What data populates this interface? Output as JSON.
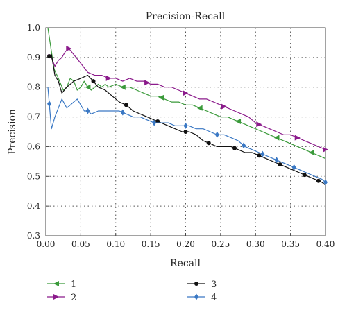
{
  "chart_data": {
    "type": "line",
    "title": "Precision-Recall",
    "xlabel": "Recall",
    "ylabel": "Precision",
    "xlim": [
      0.0,
      0.4
    ],
    "ylim": [
      0.3,
      1.0
    ],
    "xticks": [
      0.0,
      0.05,
      0.1,
      0.15,
      0.2,
      0.25,
      0.3,
      0.35,
      0.4
    ],
    "yticks": [
      0.3,
      0.4,
      0.5,
      0.6,
      0.7,
      0.8,
      0.9,
      1.0
    ],
    "xtick_labels": [
      "0.00",
      "0.05",
      "0.10",
      "0.15",
      "0.20",
      "0.25",
      "0.30",
      "0.35",
      "0.40"
    ],
    "ytick_labels": [
      "0.3",
      "0.4",
      "0.5",
      "0.6",
      "0.7",
      "0.8",
      "0.9",
      "1.0"
    ],
    "grid": true,
    "legend_position": "bottom",
    "series": [
      {
        "name": "1",
        "color": "#3a9a3a",
        "marker": "triangle-left",
        "x": [
          0.003,
          0.008,
          0.012,
          0.018,
          0.025,
          0.03,
          0.035,
          0.04,
          0.045,
          0.05,
          0.055,
          0.06,
          0.065,
          0.07,
          0.075,
          0.08,
          0.085,
          0.09,
          0.1,
          0.11,
          0.12,
          0.13,
          0.14,
          0.15,
          0.16,
          0.17,
          0.18,
          0.19,
          0.2,
          0.21,
          0.22,
          0.23,
          0.24,
          0.25,
          0.26,
          0.27,
          0.28,
          0.29,
          0.3,
          0.31,
          0.32,
          0.33,
          0.34,
          0.35,
          0.36,
          0.37,
          0.38,
          0.39,
          0.4
        ],
        "y": [
          1.0,
          0.92,
          0.86,
          0.83,
          0.79,
          0.8,
          0.83,
          0.82,
          0.79,
          0.8,
          0.82,
          0.8,
          0.79,
          0.8,
          0.81,
          0.8,
          0.81,
          0.8,
          0.81,
          0.8,
          0.8,
          0.79,
          0.78,
          0.77,
          0.77,
          0.76,
          0.75,
          0.75,
          0.74,
          0.74,
          0.73,
          0.72,
          0.71,
          0.7,
          0.7,
          0.69,
          0.68,
          0.67,
          0.66,
          0.65,
          0.64,
          0.63,
          0.62,
          0.61,
          0.6,
          0.59,
          0.58,
          0.57,
          0.56
        ],
        "marker_x": [
          0.06,
          0.11,
          0.165,
          0.22,
          0.275,
          0.33,
          0.38
        ]
      },
      {
        "name": "2",
        "color": "#8b1a8b",
        "marker": "triangle-right",
        "x": [
          0.003,
          0.008,
          0.013,
          0.018,
          0.023,
          0.028,
          0.033,
          0.04,
          0.05,
          0.06,
          0.07,
          0.08,
          0.09,
          0.1,
          0.11,
          0.12,
          0.13,
          0.14,
          0.15,
          0.16,
          0.17,
          0.18,
          0.19,
          0.2,
          0.21,
          0.22,
          0.23,
          0.24,
          0.25,
          0.26,
          0.27,
          0.28,
          0.29,
          0.3,
          0.31,
          0.32,
          0.33,
          0.34,
          0.35,
          0.36,
          0.37,
          0.38,
          0.39,
          0.4
        ],
        "y": [
          0.91,
          0.9,
          0.87,
          0.89,
          0.9,
          0.92,
          0.93,
          0.91,
          0.88,
          0.85,
          0.84,
          0.84,
          0.83,
          0.83,
          0.82,
          0.83,
          0.82,
          0.82,
          0.81,
          0.81,
          0.8,
          0.8,
          0.79,
          0.78,
          0.77,
          0.76,
          0.76,
          0.75,
          0.74,
          0.73,
          0.72,
          0.71,
          0.7,
          0.68,
          0.67,
          0.66,
          0.65,
          0.64,
          0.64,
          0.63,
          0.62,
          0.61,
          0.6,
          0.59
        ],
        "marker_x": [
          0.033,
          0.09,
          0.145,
          0.2,
          0.255,
          0.305,
          0.36,
          0.4
        ]
      },
      {
        "name": "3",
        "color": "#111111",
        "marker": "circle",
        "x": [
          0.003,
          0.008,
          0.013,
          0.018,
          0.023,
          0.03,
          0.035,
          0.04,
          0.05,
          0.06,
          0.068,
          0.075,
          0.085,
          0.095,
          0.105,
          0.115,
          0.125,
          0.135,
          0.145,
          0.155,
          0.165,
          0.175,
          0.185,
          0.195,
          0.205,
          0.215,
          0.225,
          0.235,
          0.245,
          0.255,
          0.265,
          0.275,
          0.285,
          0.295,
          0.305,
          0.315,
          0.325,
          0.335,
          0.345,
          0.355,
          0.365,
          0.375,
          0.385,
          0.395,
          0.4
        ],
        "y": [
          0.9,
          0.91,
          0.84,
          0.82,
          0.78,
          0.8,
          0.81,
          0.82,
          0.83,
          0.84,
          0.82,
          0.8,
          0.79,
          0.77,
          0.75,
          0.74,
          0.72,
          0.71,
          0.7,
          0.69,
          0.68,
          0.67,
          0.66,
          0.65,
          0.65,
          0.64,
          0.62,
          0.61,
          0.6,
          0.6,
          0.6,
          0.59,
          0.58,
          0.58,
          0.57,
          0.56,
          0.55,
          0.54,
          0.53,
          0.52,
          0.51,
          0.5,
          0.49,
          0.48,
          0.47
        ],
        "marker_x": [
          0.005,
          0.068,
          0.115,
          0.16,
          0.2,
          0.233,
          0.27,
          0.305,
          0.335,
          0.37,
          0.39
        ]
      },
      {
        "name": "4",
        "color": "#3a78c4",
        "marker": "diamond",
        "x": [
          0.003,
          0.008,
          0.013,
          0.018,
          0.023,
          0.03,
          0.035,
          0.04,
          0.045,
          0.05,
          0.055,
          0.06,
          0.065,
          0.075,
          0.085,
          0.095,
          0.105,
          0.115,
          0.125,
          0.135,
          0.145,
          0.155,
          0.165,
          0.175,
          0.185,
          0.195,
          0.205,
          0.215,
          0.225,
          0.235,
          0.245,
          0.255,
          0.265,
          0.275,
          0.285,
          0.295,
          0.305,
          0.315,
          0.325,
          0.335,
          0.345,
          0.355,
          0.365,
          0.375,
          0.385,
          0.395,
          0.4
        ],
        "y": [
          0.8,
          0.66,
          0.7,
          0.73,
          0.76,
          0.73,
          0.74,
          0.75,
          0.76,
          0.74,
          0.72,
          0.72,
          0.71,
          0.72,
          0.72,
          0.72,
          0.72,
          0.71,
          0.7,
          0.7,
          0.69,
          0.68,
          0.68,
          0.68,
          0.67,
          0.67,
          0.67,
          0.66,
          0.66,
          0.65,
          0.64,
          0.64,
          0.63,
          0.62,
          0.6,
          0.59,
          0.58,
          0.57,
          0.56,
          0.55,
          0.54,
          0.53,
          0.52,
          0.51,
          0.5,
          0.49,
          0.48
        ],
        "marker_x": [
          0.005,
          0.06,
          0.11,
          0.155,
          0.2,
          0.245,
          0.283,
          0.31,
          0.33,
          0.355,
          0.4
        ]
      }
    ]
  }
}
